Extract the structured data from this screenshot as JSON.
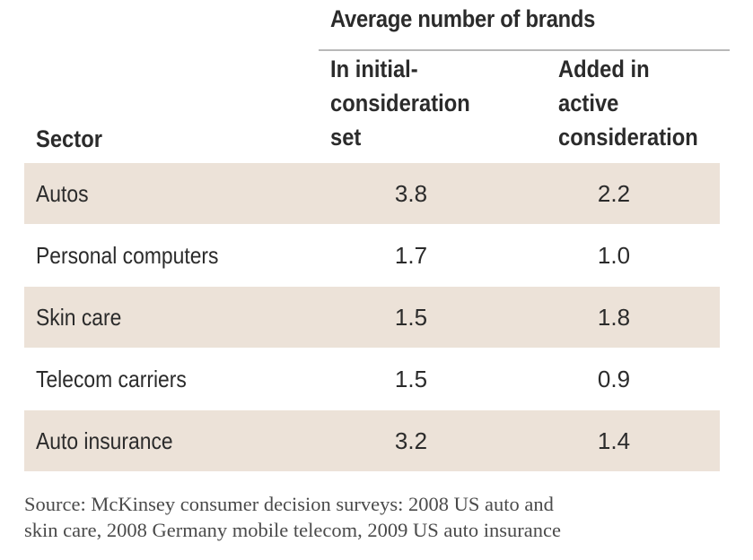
{
  "chart_data": {
    "type": "table",
    "group_header": "Average number of brands",
    "columns": {
      "sector": "Sector",
      "initial": [
        "In initial-",
        "consideration",
        "set"
      ],
      "added": [
        "Added in",
        "active",
        "consideration"
      ]
    },
    "rows": [
      {
        "sector": "Autos",
        "initial": "3.8",
        "added": "2.2"
      },
      {
        "sector": "Personal computers",
        "initial": "1.7",
        "added": "1.0"
      },
      {
        "sector": "Skin care",
        "initial": "1.5",
        "added": "1.8"
      },
      {
        "sector": "Telecom carriers",
        "initial": "1.5",
        "added": "0.9"
      },
      {
        "sector": "Auto insurance",
        "initial": "3.2",
        "added": "1.4"
      }
    ],
    "source": [
      "Source: McKinsey consumer decision surveys: 2008 US auto and",
      "skin care, 2008 Germany mobile telecom, 2009 US auto insurance"
    ],
    "row_shading_color": "#ece2d8"
  }
}
